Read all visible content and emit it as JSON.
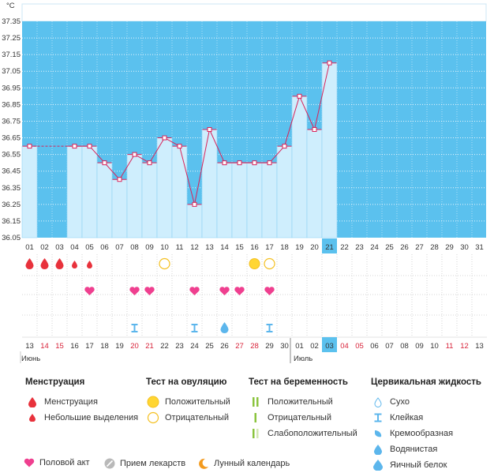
{
  "chart_data": {
    "type": "line",
    "unit": "°C",
    "y_ticks": [
      "37.35",
      "37.25",
      "37.15",
      "37.05",
      "36.95",
      "36.85",
      "36.75",
      "36.65",
      "36.55",
      "36.45",
      "36.35",
      "36.25",
      "36.15",
      "36.05"
    ],
    "ylim": [
      36.05,
      37.35
    ],
    "days": [
      "01",
      "02",
      "03",
      "04",
      "05",
      "06",
      "07",
      "08",
      "09",
      "10",
      "11",
      "12",
      "13",
      "14",
      "15",
      "16",
      "17",
      "18",
      "19",
      "20",
      "21",
      "22",
      "23",
      "24",
      "25",
      "26",
      "27",
      "28",
      "29",
      "30",
      "31"
    ],
    "temperatures": [
      36.6,
      null,
      null,
      36.6,
      36.6,
      36.5,
      36.4,
      36.55,
      36.5,
      36.65,
      36.6,
      36.25,
      36.7,
      36.5,
      36.5,
      36.5,
      36.5,
      36.6,
      36.9,
      36.7,
      37.1,
      null,
      null,
      null,
      null,
      null,
      null,
      null,
      null,
      null,
      null
    ],
    "current_day_index": 20,
    "dates": [
      "13",
      "14",
      "15",
      "16",
      "17",
      "18",
      "19",
      "20",
      "21",
      "22",
      "23",
      "24",
      "25",
      "26",
      "27",
      "28",
      "29",
      "30",
      "01",
      "02",
      "03",
      "04",
      "05",
      "06",
      "07",
      "08",
      "09",
      "10",
      "11",
      "12",
      "13"
    ],
    "weekend_dates": [
      1,
      2,
      7,
      8,
      14,
      15,
      21,
      22,
      28,
      29
    ],
    "month_separator_index": 18,
    "month_labels": [
      {
        "text": "Июнь",
        "index": 0
      },
      {
        "text": "Июль",
        "index": 18
      }
    ],
    "menstruation_days": [
      0,
      1,
      2
    ],
    "spotting_days": [
      3,
      4
    ],
    "ovulation_positive_days": [
      15
    ],
    "ovulation_negative_days": [
      9,
      16
    ],
    "intercourse_days": [
      4,
      7,
      8,
      11,
      13,
      14,
      16
    ],
    "fluid_sticky_days": [
      7,
      11,
      16
    ],
    "fluid_watery_days": [
      13
    ],
    "colors": {
      "plot_bg": "#5bc1ee",
      "bar_fill": "#cfeefd",
      "bar_stroke": "#8fd3f3",
      "line": "#d8235a",
      "current_day_bg": "#5bc1ee",
      "drop_red": "#e8323c",
      "heart": "#ef3f8f",
      "ovulation_yellow": "#ffd633",
      "ovulation_stroke": "#f4c020",
      "fluid_blue": "#5cb6ec"
    }
  },
  "legend": {
    "menstruation": {
      "title": "Менструация",
      "items": [
        "Менструация",
        "Небольшие выделения"
      ]
    },
    "ovulation_test": {
      "title": "Тест на овуляцию",
      "items": [
        "Положительный",
        "Отрицательный"
      ]
    },
    "pregnancy_test": {
      "title": "Тест на беременность",
      "items": [
        "Положительный",
        "Отрицательный",
        "Слабоположительный"
      ]
    },
    "cervical_fluid": {
      "title": "Цервикальная жидкость",
      "items": [
        "Сухо",
        "Клейкая",
        "Кремообразная",
        "Водянистая",
        "Яичный белок"
      ]
    },
    "bottom": [
      "Половой акт",
      "Прием лекарств",
      "Лунный календарь"
    ]
  }
}
